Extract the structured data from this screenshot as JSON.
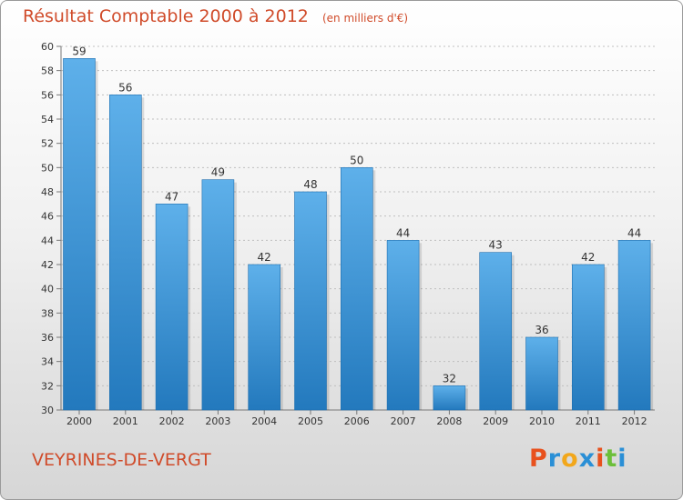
{
  "header": {
    "title": "Résultat Comptable 2000 à 2012",
    "unit": "(en milliers d'€)"
  },
  "footer": {
    "commune": "VEYRINES-DE-VERGT",
    "brand": "Proxiti",
    "brand_colors": [
      "#e8511d",
      "#2a8fd6",
      "#f2a71b",
      "#2a8fd6",
      "#e8511d",
      "#6cbf3a",
      "#2a8fd6"
    ]
  },
  "colors": {
    "title": "#d04b2a",
    "bar_light": "#5eb0ea",
    "bar_dark": "#2379bd",
    "grid": "#bfbfbf"
  },
  "chart_data": {
    "type": "bar",
    "title": "Résultat Comptable 2000 à 2012",
    "unit": "(en milliers d'€)",
    "xlabel": "",
    "ylabel": "",
    "categories": [
      "2000",
      "2001",
      "2002",
      "2003",
      "2004",
      "2005",
      "2006",
      "2007",
      "2008",
      "2009",
      "2010",
      "2011",
      "2012"
    ],
    "values": [
      59,
      56,
      47,
      49,
      42,
      48,
      50,
      44,
      32,
      43,
      36,
      42,
      44
    ],
    "ylim": [
      30,
      60
    ],
    "yticks": [
      30,
      32,
      34,
      36,
      38,
      40,
      42,
      44,
      46,
      48,
      50,
      52,
      54,
      56,
      58,
      60
    ],
    "grid": true
  }
}
